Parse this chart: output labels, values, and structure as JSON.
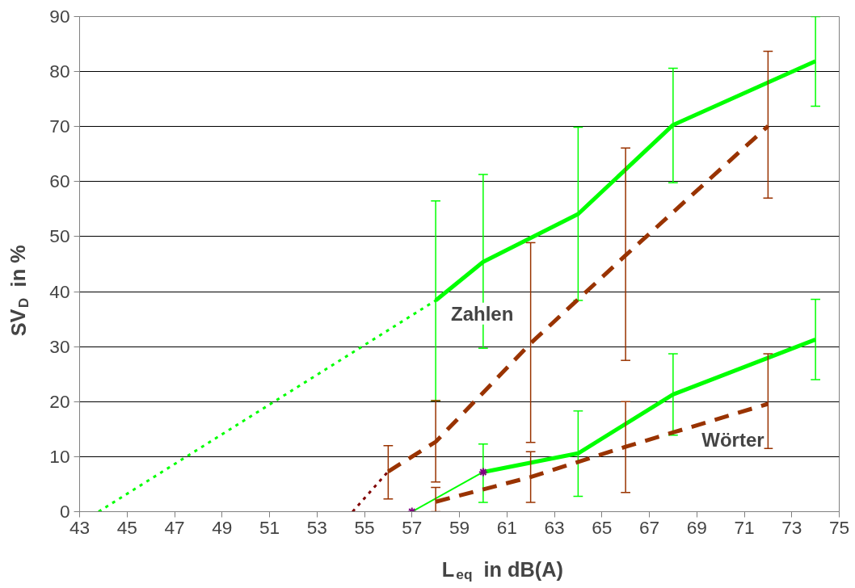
{
  "chart_data": {
    "type": "line",
    "xlabel": "L$_{eq}$ in dB(A)",
    "ylabel": "SV$_{D}$ in %",
    "xlim": [
      43,
      75
    ],
    "xticks": [
      43,
      45,
      47,
      49,
      51,
      53,
      55,
      57,
      59,
      61,
      63,
      65,
      67,
      69,
      71,
      73,
      75
    ],
    "ylim": [
      0,
      90
    ],
    "yticks": [
      0,
      10,
      20,
      30,
      40,
      50,
      60,
      70,
      80,
      90
    ],
    "grid": "y",
    "series": [
      {
        "color": "#00ff00",
        "line_style": "solid",
        "x": [
          58,
          60,
          64,
          68,
          74
        ],
        "values": [
          38.4,
          45.4,
          54.1,
          70.3,
          81.9
        ],
        "errors": [
          [
            20.2,
            56.5
          ],
          [
            29.7,
            61.3
          ],
          [
            38.4,
            69.9
          ],
          [
            59.8,
            80.6
          ],
          [
            73.7,
            90
          ]
        ]
      },
      {
        "color": "#00ff00",
        "line_style": "dotted",
        "x": [
          43.8,
          58
        ],
        "values": [
          0,
          38.4
        ]
      },
      {
        "color": "#993300",
        "line_style": "dashed",
        "x": [
          56,
          58,
          62,
          66,
          72
        ],
        "values": [
          7.3,
          12.7,
          30.6,
          46.6,
          70.1
        ],
        "errors": [
          [
            2.3,
            12
          ],
          [
            5.4,
            20.2
          ],
          [
            12.6,
            48.9
          ],
          [
            27.5,
            66.1
          ],
          [
            57.0,
            83.7
          ]
        ]
      },
      {
        "color": "#800000",
        "line_style": "dotted",
        "x": [
          54.5,
          56
        ],
        "values": [
          0,
          7.3
        ]
      },
      {
        "color": "#00ff00",
        "line_style": "solid",
        "x": [
          60,
          64,
          68,
          74
        ],
        "values": [
          7.2,
          10.6,
          21.3,
          31.3
        ],
        "errors": [
          [
            1.7,
            12.3
          ],
          [
            2.8,
            18.3
          ],
          [
            13.9,
            28.7
          ],
          [
            24.0,
            38.6
          ]
        ]
      },
      {
        "color": "#00ff00",
        "line_style": "solid",
        "marker": "cross",
        "colors": [
          "#800080",
          "#800080"
        ],
        "x": [
          57,
          60
        ],
        "values": [
          0,
          7.2
        ]
      },
      {
        "color": "#993300",
        "line_style": "dashed",
        "x": [
          58,
          62,
          66,
          72
        ],
        "values": [
          1.8,
          6.3,
          11.8,
          19.6
        ],
        "errors": [
          [
            0,
            4.4
          ],
          [
            1.7,
            10.9
          ],
          [
            3.5,
            20.0
          ],
          [
            11.5,
            28.7
          ]
        ]
      }
    ],
    "annotations": [
      "Zahlen",
      "Wörter"
    ]
  }
}
